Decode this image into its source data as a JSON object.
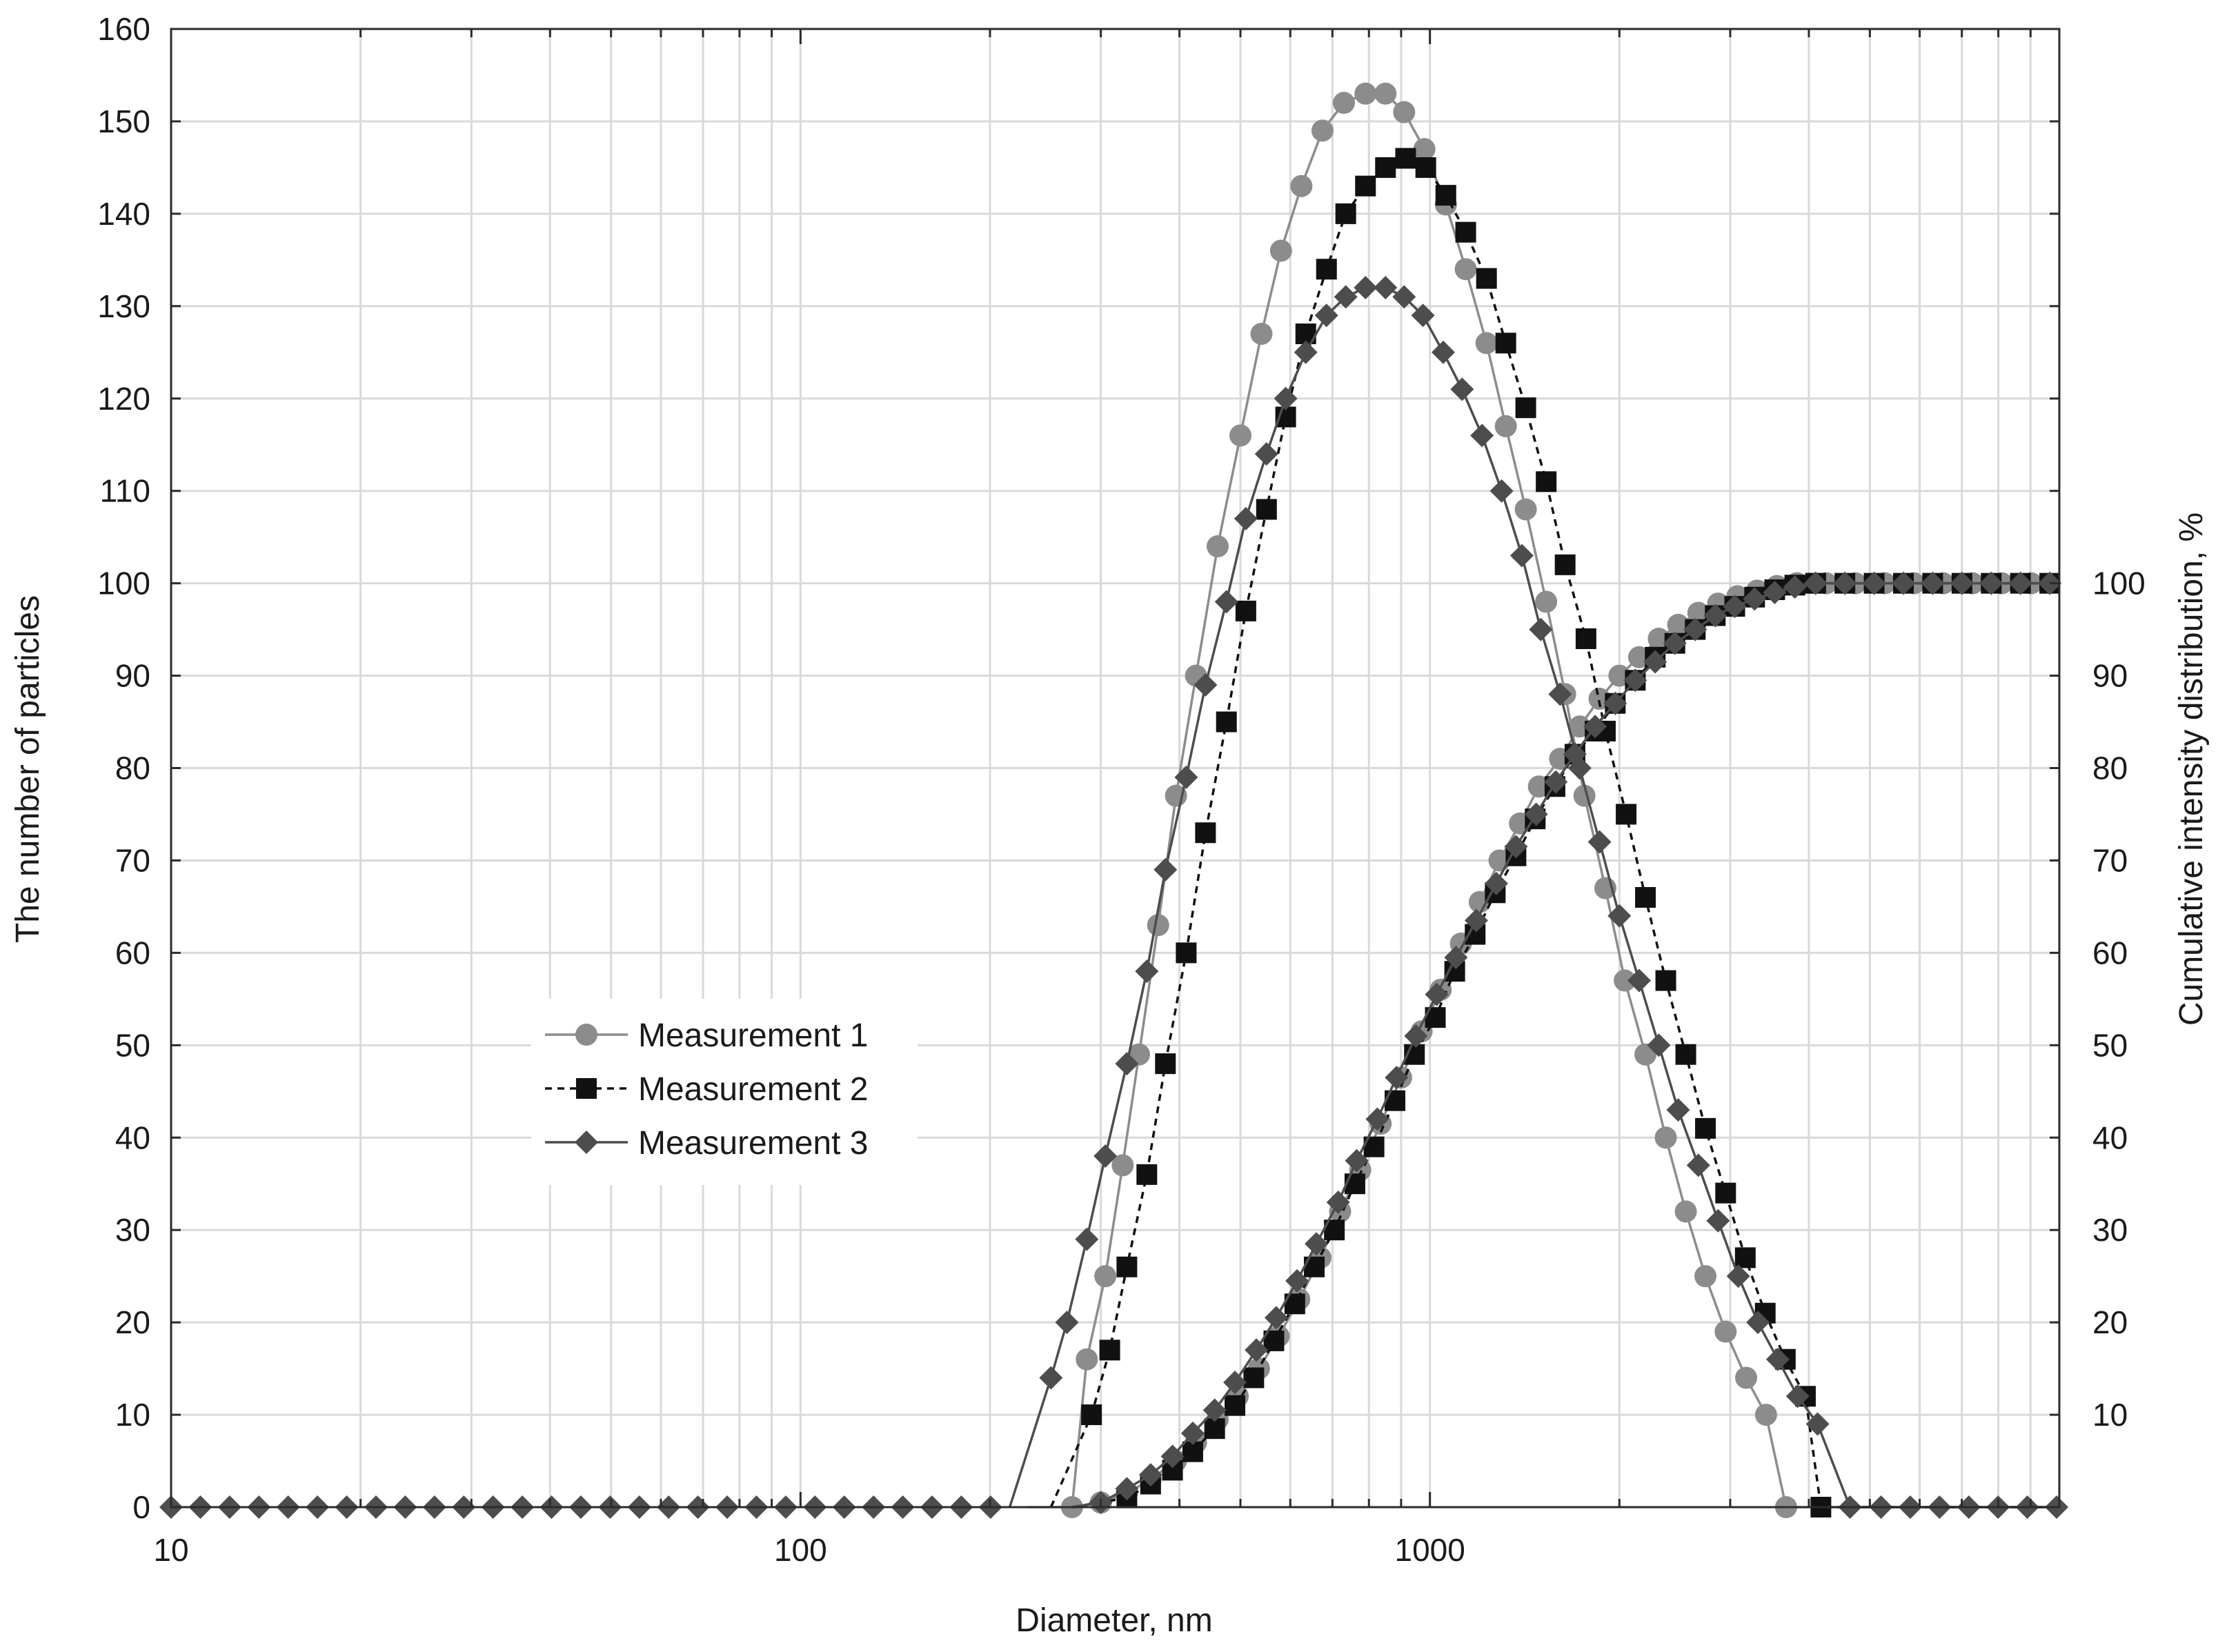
{
  "chart_data": {
    "type": "scatter",
    "xlabel": "Diameter, nm",
    "ylabel": "The number of particles",
    "y2label": "Cumulative intensity distribution, %",
    "xscale": "log",
    "xlim": [
      10,
      10000
    ],
    "ylim": [
      0,
      160
    ],
    "y2lim": [
      0,
      160
    ],
    "grid": true,
    "legend_position": "center-left",
    "x_ticks": [
      "10",
      "100",
      "1000"
    ],
    "y_ticks": [
      "0",
      "10",
      "20",
      "30",
      "40",
      "50",
      "60",
      "70",
      "80",
      "90",
      "100",
      "110",
      "120",
      "130",
      "140",
      "150",
      "160"
    ],
    "y2_ticks": [
      "10",
      "20",
      "30",
      "40",
      "50",
      "60",
      "70",
      "80",
      "90",
      "100"
    ],
    "series": [
      {
        "name": "Measurement 1",
        "color": "#8c8c8c",
        "marker": "circle",
        "line": "solid",
        "distribution": [
          [
            230,
            0
          ],
          [
            270,
            0
          ],
          [
            285,
            16
          ],
          [
            305,
            25
          ],
          [
            325,
            37
          ],
          [
            345,
            49
          ],
          [
            370,
            63
          ],
          [
            395,
            77
          ],
          [
            425,
            90
          ],
          [
            460,
            104
          ],
          [
            500,
            116
          ],
          [
            540,
            127
          ],
          [
            580,
            136
          ],
          [
            625,
            143
          ],
          [
            675,
            149
          ],
          [
            730,
            152
          ],
          [
            790,
            153
          ],
          [
            850,
            153
          ],
          [
            910,
            151
          ],
          [
            980,
            147
          ],
          [
            1060,
            141
          ],
          [
            1140,
            134
          ],
          [
            1230,
            126
          ],
          [
            1320,
            117
          ],
          [
            1420,
            108
          ],
          [
            1530,
            98
          ],
          [
            1640,
            88
          ],
          [
            1760,
            77
          ],
          [
            1900,
            67
          ],
          [
            2040,
            57
          ],
          [
            2200,
            49
          ],
          [
            2370,
            40
          ],
          [
            2550,
            32
          ],
          [
            2740,
            25
          ],
          [
            2950,
            19
          ],
          [
            3180,
            14
          ],
          [
            3420,
            10
          ],
          [
            3680,
            0
          ],
          [
            10000,
            0
          ]
        ],
        "cumulative": [
          [
            270,
            0
          ],
          [
            300,
            0.5
          ],
          [
            330,
            1.5
          ],
          [
            360,
            3
          ],
          [
            395,
            5
          ],
          [
            425,
            7
          ],
          [
            460,
            9.5
          ],
          [
            495,
            12
          ],
          [
            535,
            15
          ],
          [
            575,
            18.5
          ],
          [
            620,
            22.5
          ],
          [
            670,
            27
          ],
          [
            720,
            32
          ],
          [
            775,
            36.5
          ],
          [
            835,
            41.5
          ],
          [
            900,
            46.5
          ],
          [
            970,
            51.5
          ],
          [
            1040,
            56
          ],
          [
            1120,
            61
          ],
          [
            1200,
            65.5
          ],
          [
            1290,
            70
          ],
          [
            1390,
            74
          ],
          [
            1490,
            78
          ],
          [
            1610,
            81
          ],
          [
            1730,
            84.5
          ],
          [
            1860,
            87.5
          ],
          [
            2000,
            90
          ],
          [
            2150,
            92
          ],
          [
            2310,
            94
          ],
          [
            2480,
            95.5
          ],
          [
            2670,
            96.8
          ],
          [
            2870,
            97.8
          ],
          [
            3080,
            98.6
          ],
          [
            3310,
            99.2
          ],
          [
            3560,
            99.7
          ],
          [
            3830,
            100
          ],
          [
            10000,
            100
          ]
        ]
      },
      {
        "name": "Measurement 2",
        "color": "#111111",
        "marker": "square",
        "line": "dashed",
        "distribution": [
          [
            250,
            0
          ],
          [
            290,
            10
          ],
          [
            310,
            17
          ],
          [
            330,
            26
          ],
          [
            355,
            36
          ],
          [
            380,
            48
          ],
          [
            410,
            60
          ],
          [
            440,
            73
          ],
          [
            475,
            85
          ],
          [
            510,
            97
          ],
          [
            550,
            108
          ],
          [
            590,
            118
          ],
          [
            635,
            127
          ],
          [
            685,
            134
          ],
          [
            735,
            140
          ],
          [
            790,
            143
          ],
          [
            850,
            145
          ],
          [
            915,
            146
          ],
          [
            985,
            145
          ],
          [
            1060,
            142
          ],
          [
            1140,
            138
          ],
          [
            1230,
            133
          ],
          [
            1320,
            126
          ],
          [
            1420,
            119
          ],
          [
            1530,
            111
          ],
          [
            1640,
            102
          ],
          [
            1770,
            94
          ],
          [
            1900,
            84
          ],
          [
            2050,
            75
          ],
          [
            2200,
            66
          ],
          [
            2370,
            57
          ],
          [
            2550,
            49
          ],
          [
            2740,
            41
          ],
          [
            2950,
            34
          ],
          [
            3170,
            27
          ],
          [
            3410,
            21
          ],
          [
            3670,
            16
          ],
          [
            3950,
            12
          ],
          [
            4180,
            0
          ],
          [
            10000,
            0
          ]
        ],
        "cumulative": [
          [
            270,
            0
          ],
          [
            330,
            1
          ],
          [
            360,
            2.5
          ],
          [
            390,
            4
          ],
          [
            420,
            6
          ],
          [
            455,
            8.5
          ],
          [
            490,
            11
          ],
          [
            525,
            14
          ],
          [
            565,
            18
          ],
          [
            610,
            22
          ],
          [
            655,
            26
          ],
          [
            705,
            30
          ],
          [
            760,
            35
          ],
          [
            815,
            39
          ],
          [
            880,
            44
          ],
          [
            945,
            49
          ],
          [
            1020,
            53
          ],
          [
            1095,
            58
          ],
          [
            1180,
            62
          ],
          [
            1270,
            66.5
          ],
          [
            1370,
            70.5
          ],
          [
            1470,
            74.5
          ],
          [
            1580,
            78
          ],
          [
            1700,
            81.5
          ],
          [
            1830,
            84
          ],
          [
            1970,
            87
          ],
          [
            2120,
            89.5
          ],
          [
            2280,
            92
          ],
          [
            2450,
            93.5
          ],
          [
            2640,
            95
          ],
          [
            2840,
            96.5
          ],
          [
            3050,
            97.5
          ],
          [
            3280,
            98.5
          ],
          [
            3530,
            99.3
          ],
          [
            3800,
            99.8
          ],
          [
            4100,
            100
          ],
          [
            10000,
            100
          ]
        ]
      },
      {
        "name": "Measurement 3",
        "color": "#4d4d4d",
        "marker": "diamond",
        "line": "solid",
        "distribution": [
          [
            215,
            0
          ],
          [
            250,
            14
          ],
          [
            265,
            20
          ],
          [
            285,
            29
          ],
          [
            305,
            38
          ],
          [
            330,
            48
          ],
          [
            355,
            58
          ],
          [
            380,
            69
          ],
          [
            410,
            79
          ],
          [
            440,
            89
          ],
          [
            475,
            98
          ],
          [
            510,
            107
          ],
          [
            550,
            114
          ],
          [
            590,
            120
          ],
          [
            635,
            125
          ],
          [
            685,
            129
          ],
          [
            735,
            131
          ],
          [
            790,
            132
          ],
          [
            850,
            132
          ],
          [
            910,
            131
          ],
          [
            975,
            129
          ],
          [
            1050,
            125
          ],
          [
            1125,
            121
          ],
          [
            1210,
            116
          ],
          [
            1300,
            110
          ],
          [
            1400,
            103
          ],
          [
            1500,
            95
          ],
          [
            1610,
            88
          ],
          [
            1730,
            80
          ],
          [
            1860,
            72
          ],
          [
            2000,
            64
          ],
          [
            2150,
            57
          ],
          [
            2310,
            50
          ],
          [
            2480,
            43
          ],
          [
            2670,
            37
          ],
          [
            2870,
            31
          ],
          [
            3090,
            25
          ],
          [
            3320,
            20
          ],
          [
            3570,
            16
          ],
          [
            3840,
            12
          ],
          [
            4130,
            9
          ],
          [
            4650,
            0
          ],
          [
            10000,
            0
          ]
        ],
        "cumulative": [
          [
            270,
            0
          ],
          [
            300,
            0.5
          ],
          [
            330,
            2
          ],
          [
            360,
            3.5
          ],
          [
            390,
            5.5
          ],
          [
            420,
            8
          ],
          [
            455,
            10.5
          ],
          [
            490,
            13.5
          ],
          [
            530,
            17
          ],
          [
            570,
            20.5
          ],
          [
            615,
            24.5
          ],
          [
            660,
            28.5
          ],
          [
            715,
            33
          ],
          [
            765,
            37.5
          ],
          [
            825,
            42
          ],
          [
            885,
            46.5
          ],
          [
            950,
            51
          ],
          [
            1025,
            55.5
          ],
          [
            1100,
            59.5
          ],
          [
            1185,
            63.5
          ],
          [
            1275,
            67.5
          ],
          [
            1370,
            71.5
          ],
          [
            1475,
            75
          ],
          [
            1585,
            78.5
          ],
          [
            1700,
            81.5
          ],
          [
            1830,
            84.5
          ],
          [
            1970,
            87
          ],
          [
            2120,
            89.5
          ],
          [
            2280,
            91.5
          ],
          [
            2450,
            93.5
          ],
          [
            2640,
            95
          ],
          [
            2840,
            96.5
          ],
          [
            3050,
            97.5
          ],
          [
            3280,
            98.3
          ],
          [
            3530,
            99
          ],
          [
            3800,
            99.6
          ],
          [
            4100,
            100
          ],
          [
            10000,
            100
          ]
        ]
      }
    ]
  }
}
